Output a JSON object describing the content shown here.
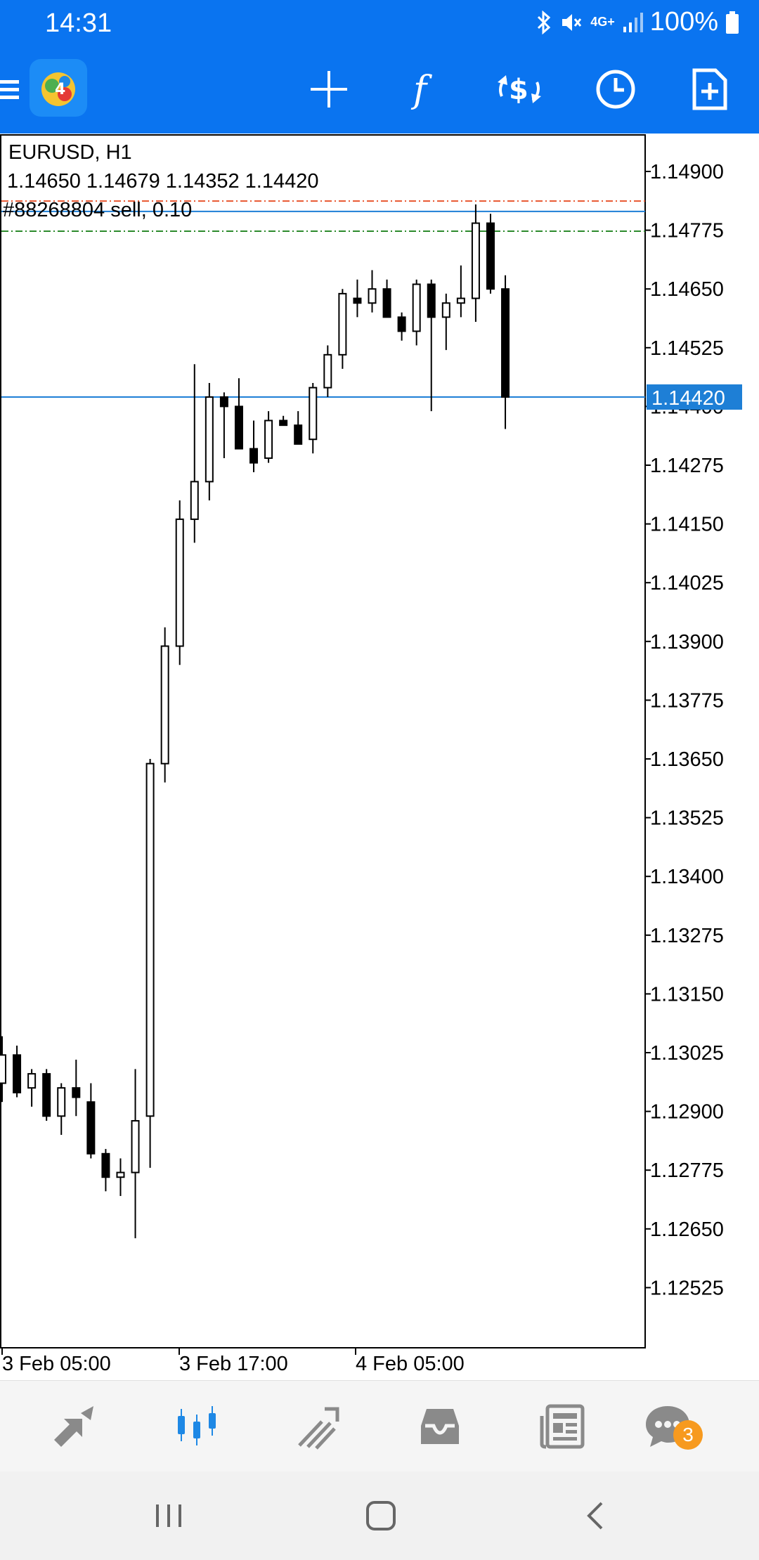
{
  "status_bar": {
    "time": "14:31",
    "network": "4G+",
    "battery": "100%"
  },
  "toolbar": {
    "icons": [
      "menu-icon",
      "app-logo",
      "crosshair-icon",
      "indicators-icon",
      "trade-icon",
      "timeframe-icon",
      "new-order-icon"
    ]
  },
  "chart": {
    "symbol_line": "EURUSD, H1",
    "ohlc_line": "1.14650 1.14679 1.14352 1.14420",
    "order_label": "#88268804 sell, 0.10",
    "current_price": "1.14420",
    "colors": {
      "bull": "#ffffff",
      "bear": "#000000",
      "price_line": "#1e7fd6",
      "stop_loss": "#e8552e",
      "take_profit": "#2c8a2c",
      "label_bg": "#1e7fd6"
    }
  },
  "chart_data": {
    "type": "candlestick",
    "title": "EURUSD, H1",
    "y_ticks": [
      "1.14900",
      "1.14775",
      "1.14650",
      "1.14525",
      "1.14400",
      "1.14275",
      "1.14150",
      "1.14025",
      "1.13900",
      "1.13775",
      "1.13650",
      "1.13525",
      "1.13400",
      "1.13275",
      "1.13150",
      "1.13025",
      "1.12900",
      "1.12775",
      "1.12650",
      "1.12525"
    ],
    "x_ticks": [
      "3 Feb 05:00",
      "3 Feb 17:00",
      "4 Feb 05:00"
    ],
    "ylim": [
      1.1245,
      1.1497
    ],
    "levels": {
      "current": 1.1442,
      "order": 1.14815,
      "stop_loss": 1.14837,
      "take_profit": 1.14773
    },
    "candles": [
      {
        "o": 1.1296,
        "h": 1.1306,
        "l": 1.1292,
        "c": 1.1302
      },
      {
        "o": 1.1302,
        "h": 1.1304,
        "l": 1.1293,
        "c": 1.1294
      },
      {
        "o": 1.1295,
        "h": 1.1299,
        "l": 1.1291,
        "c": 1.1298
      },
      {
        "o": 1.1298,
        "h": 1.1299,
        "l": 1.1288,
        "c": 1.1289
      },
      {
        "o": 1.1289,
        "h": 1.1296,
        "l": 1.1285,
        "c": 1.1295
      },
      {
        "o": 1.1295,
        "h": 1.1301,
        "l": 1.1289,
        "c": 1.1293
      },
      {
        "o": 1.1292,
        "h": 1.1296,
        "l": 1.128,
        "c": 1.1281
      },
      {
        "o": 1.1281,
        "h": 1.1282,
        "l": 1.1273,
        "c": 1.1276
      },
      {
        "o": 1.1276,
        "h": 1.128,
        "l": 1.1272,
        "c": 1.1277
      },
      {
        "o": 1.1277,
        "h": 1.1299,
        "l": 1.1263,
        "c": 1.1288
      },
      {
        "o": 1.1289,
        "h": 1.1365,
        "l": 1.1278,
        "c": 1.1364
      },
      {
        "o": 1.1364,
        "h": 1.1393,
        "l": 1.136,
        "c": 1.1389
      },
      {
        "o": 1.1389,
        "h": 1.142,
        "l": 1.1385,
        "c": 1.1416
      },
      {
        "o": 1.1416,
        "h": 1.1449,
        "l": 1.1411,
        "c": 1.1424
      },
      {
        "o": 1.1424,
        "h": 1.1445,
        "l": 1.142,
        "c": 1.1442
      },
      {
        "o": 1.1442,
        "h": 1.1443,
        "l": 1.1429,
        "c": 1.144
      },
      {
        "o": 1.144,
        "h": 1.1446,
        "l": 1.1432,
        "c": 1.1431
      },
      {
        "o": 1.1431,
        "h": 1.1437,
        "l": 1.1426,
        "c": 1.1428
      },
      {
        "o": 1.1429,
        "h": 1.1439,
        "l": 1.1428,
        "c": 1.1437
      },
      {
        "o": 1.1437,
        "h": 1.1438,
        "l": 1.1436,
        "c": 1.1436
      },
      {
        "o": 1.1436,
        "h": 1.1439,
        "l": 1.1432,
        "c": 1.1432
      },
      {
        "o": 1.1433,
        "h": 1.1445,
        "l": 1.143,
        "c": 1.1444
      },
      {
        "o": 1.1444,
        "h": 1.1453,
        "l": 1.1442,
        "c": 1.1451
      },
      {
        "o": 1.1451,
        "h": 1.1465,
        "l": 1.1448,
        "c": 1.1464
      },
      {
        "o": 1.1463,
        "h": 1.1467,
        "l": 1.1459,
        "c": 1.1462
      },
      {
        "o": 1.1462,
        "h": 1.1469,
        "l": 1.146,
        "c": 1.1465
      },
      {
        "o": 1.1465,
        "h": 1.1467,
        "l": 1.1459,
        "c": 1.1459
      },
      {
        "o": 1.1459,
        "h": 1.146,
        "l": 1.1454,
        "c": 1.1456
      },
      {
        "o": 1.1456,
        "h": 1.1467,
        "l": 1.1453,
        "c": 1.1466
      },
      {
        "o": 1.1466,
        "h": 1.1467,
        "l": 1.1439,
        "c": 1.1459
      },
      {
        "o": 1.1459,
        "h": 1.1464,
        "l": 1.1452,
        "c": 1.1462
      },
      {
        "o": 1.1462,
        "h": 1.147,
        "l": 1.1459,
        "c": 1.1463
      },
      {
        "o": 1.1463,
        "h": 1.1483,
        "l": 1.1458,
        "c": 1.1479
      },
      {
        "o": 1.1479,
        "h": 1.1481,
        "l": 1.1464,
        "c": 1.1465
      },
      {
        "o": 1.1465,
        "h": 1.14679,
        "l": 1.14352,
        "c": 1.1442
      }
    ]
  },
  "bottom_nav": {
    "items": [
      "quotes",
      "chart",
      "trade",
      "history",
      "news",
      "messages"
    ],
    "messages_badge": "3",
    "active": "chart"
  },
  "system_nav": [
    "recents-button",
    "home-button",
    "back-button"
  ]
}
